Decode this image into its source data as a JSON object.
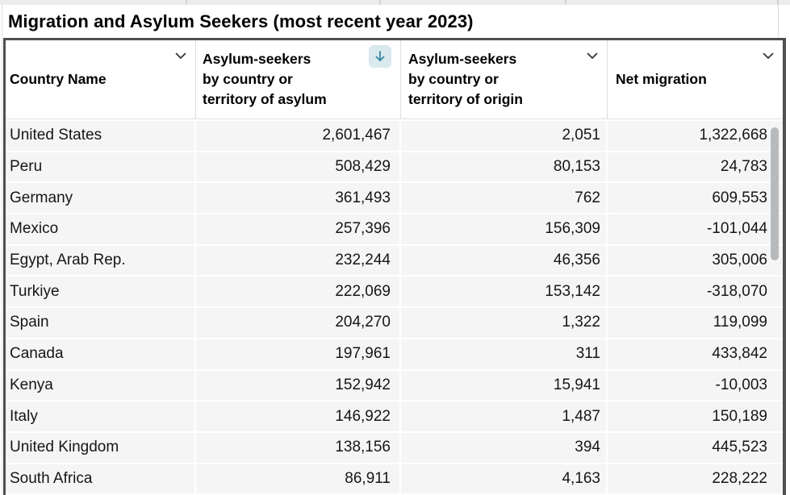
{
  "title": "Migration and Asylum Seekers (most recent year 2023)",
  "table": {
    "columns": [
      {
        "id": "country",
        "label": "Country Name",
        "align": "left",
        "sort_icon": "chevron-down"
      },
      {
        "id": "asylum_by_asylum",
        "label": "Asylum-seekers\nby country or\nterritory of asylum",
        "align": "right",
        "sort_icon": "arrow-down-active"
      },
      {
        "id": "asylum_by_origin",
        "label": "Asylum-seekers\nby country or\nterritory of origin",
        "align": "right",
        "sort_icon": "chevron-down"
      },
      {
        "id": "net_migration",
        "label": "Net migration",
        "align": "right",
        "sort_icon": "chevron-down"
      }
    ],
    "rows": [
      {
        "country": "United States",
        "asylum_by_asylum": "2,601,467",
        "asylum_by_origin": "2,051",
        "net_migration": "1,322,668"
      },
      {
        "country": "Peru",
        "asylum_by_asylum": "508,429",
        "asylum_by_origin": "80,153",
        "net_migration": "24,783"
      },
      {
        "country": "Germany",
        "asylum_by_asylum": "361,493",
        "asylum_by_origin": "762",
        "net_migration": "609,553"
      },
      {
        "country": "Mexico",
        "asylum_by_asylum": "257,396",
        "asylum_by_origin": "156,309",
        "net_migration": "-101,044"
      },
      {
        "country": "Egypt, Arab Rep.",
        "asylum_by_asylum": "232,244",
        "asylum_by_origin": "46,356",
        "net_migration": "305,006"
      },
      {
        "country": "Turkiye",
        "asylum_by_asylum": "222,069",
        "asylum_by_origin": "153,142",
        "net_migration": "-318,070"
      },
      {
        "country": "Spain",
        "asylum_by_asylum": "204,270",
        "asylum_by_origin": "1,322",
        "net_migration": "119,099"
      },
      {
        "country": "Canada",
        "asylum_by_asylum": "197,961",
        "asylum_by_origin": "311",
        "net_migration": "433,842"
      },
      {
        "country": "Kenya",
        "asylum_by_asylum": "152,942",
        "asylum_by_origin": "15,941",
        "net_migration": "-10,003"
      },
      {
        "country": "Italy",
        "asylum_by_asylum": "146,922",
        "asylum_by_origin": "1,487",
        "net_migration": "150,189"
      },
      {
        "country": "United Kingdom",
        "asylum_by_asylum": "138,156",
        "asylum_by_origin": "394",
        "net_migration": "445,523"
      },
      {
        "country": "South Africa",
        "asylum_by_asylum": "86,911",
        "asylum_by_origin": "4,163",
        "net_migration": "228,222"
      }
    ]
  },
  "icons": {
    "chevron_down": "chevron-down-icon",
    "sort_descending": "arrow-down-icon"
  },
  "colors": {
    "sort_icon_arrow": "#3a87a0",
    "sort_icon_bg": "#d9e9ee",
    "table_border": "#4f4f4f",
    "row_bg": "#f5f5f6",
    "header_bg": "#ffffff",
    "scrollbar": "#b7babd"
  }
}
